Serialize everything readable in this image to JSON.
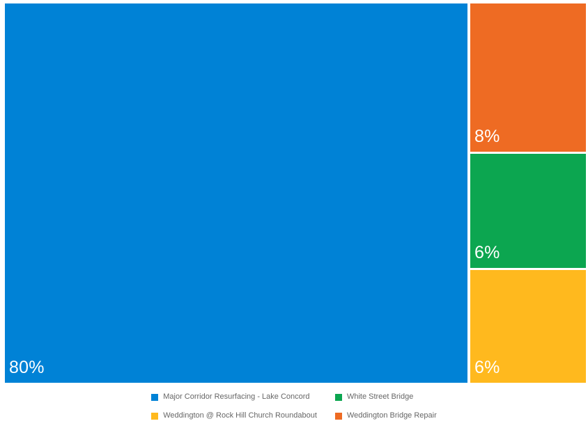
{
  "chart_data": {
    "type": "treemap",
    "title": "",
    "legend_position": "bottom",
    "label_color": "#FFFFFF",
    "background": "#FFFFFF",
    "items": [
      {
        "name": "Major Corridor Resurfacing - Lake Concord",
        "value_pct": 80,
        "label": "80%",
        "color": "#0082D6"
      },
      {
        "name": "Weddington Bridge Repair",
        "value_pct": 8,
        "label": "8%",
        "color": "#EE6B23"
      },
      {
        "name": "White Street Bridge",
        "value_pct": 6,
        "label": "6%",
        "color": "#0CA650"
      },
      {
        "name": "Weddington @ Rock Hill Church Roundabout",
        "value_pct": 6,
        "label": "6%",
        "color": "#FFB91E"
      }
    ],
    "legend": [
      {
        "label": "Major Corridor Resurfacing - Lake Concord",
        "color": "#0082D6"
      },
      {
        "label": "White Street Bridge",
        "color": "#0CA650"
      },
      {
        "label": "Weddington @ Rock Hill Church Roundabout",
        "color": "#FFB91E"
      },
      {
        "label": "Weddington Bridge Repair",
        "color": "#EE6B23"
      }
    ]
  }
}
